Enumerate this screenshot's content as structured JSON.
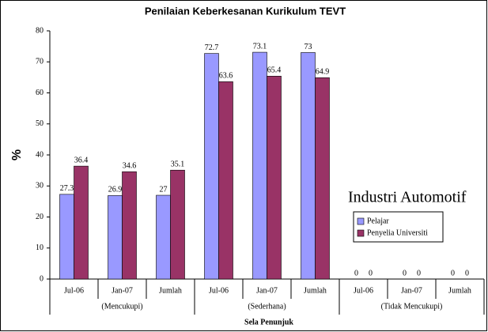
{
  "chart_data": {
    "type": "bar",
    "title": "Penilaian Keberkesanan Kurikulum TEVT",
    "xlabel": "Sela Penunjuk",
    "ylabel": "%",
    "annotation": "Industri Automotif",
    "categories": [
      "Jul-06",
      "Jan-07",
      "Jumlah",
      "Jul-06",
      "Jan-07",
      "Jumlah",
      "Jul-06",
      "Jan-07",
      "Jumlah"
    ],
    "groups": [
      "(Mencukupi)",
      "(Sederhana)",
      "(Tidak Mencukupi)"
    ],
    "series": [
      {
        "name": "Pelajar",
        "color": "#9999ff",
        "values": [
          27.3,
          26.9,
          27,
          72.7,
          73.1,
          73,
          0,
          0,
          0
        ]
      },
      {
        "name": "Penyelia Universiti",
        "color": "#993366",
        "values": [
          36.4,
          34.6,
          35.1,
          63.6,
          65.4,
          64.9,
          0,
          0,
          0
        ]
      }
    ],
    "ylim": [
      0,
      80
    ],
    "yticks": [
      0,
      10,
      20,
      30,
      40,
      50,
      60,
      70,
      80
    ],
    "grid": false
  }
}
